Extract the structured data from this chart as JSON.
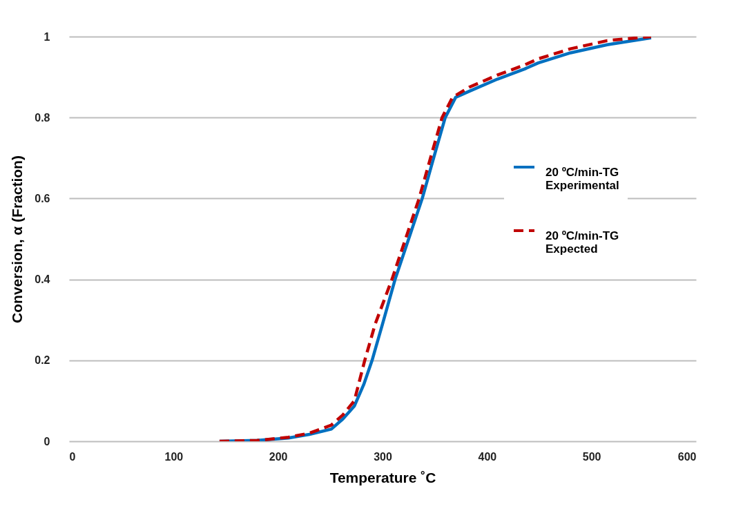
{
  "chart_data": {
    "type": "line",
    "xlabel": "Temperature ˚C",
    "ylabel": "Conversion, α (Fraction)",
    "xlim": [
      0,
      600
    ],
    "xticks": [
      0,
      100,
      200,
      300,
      400,
      500,
      600
    ],
    "ylim": [
      0,
      1
    ],
    "yticks": [
      0,
      0.2,
      0.4,
      0.6,
      0.8,
      1
    ],
    "grid": "y",
    "legend": "right",
    "marker": "none",
    "series": [
      {
        "name": "20 ºC/min-TG\nExperimental",
        "color": "#0070c0",
        "line_style": "solid",
        "x": [
          144,
          180,
          210,
          230,
          251,
          262,
          273,
          282,
          290,
          300,
          312,
          325,
          338,
          350,
          360,
          370,
          383,
          410,
          436,
          449,
          480,
          515,
          557
        ],
        "values": [
          0,
          0.002,
          0.008,
          0.017,
          0.03,
          0.055,
          0.087,
          0.14,
          0.2,
          0.29,
          0.4,
          0.5,
          0.6,
          0.71,
          0.8,
          0.85,
          0.865,
          0.895,
          0.92,
          0.935,
          0.96,
          0.98,
          0.997
        ]
      },
      {
        "name": "20 ºC/min-TG\nExpected",
        "color": "#c00000",
        "line_style": "dashed",
        "x": [
          144,
          180,
          210,
          230,
          251,
          262,
          273,
          278,
          283,
          293,
          309,
          322,
          335,
          347,
          357,
          367,
          383,
          410,
          436,
          449,
          480,
          515,
          557
        ],
        "values": [
          0,
          0.002,
          0.01,
          0.02,
          0.04,
          0.065,
          0.1,
          0.15,
          0.2,
          0.29,
          0.4,
          0.5,
          0.6,
          0.71,
          0.8,
          0.85,
          0.875,
          0.905,
          0.93,
          0.945,
          0.97,
          0.99,
          1.0
        ]
      }
    ]
  }
}
